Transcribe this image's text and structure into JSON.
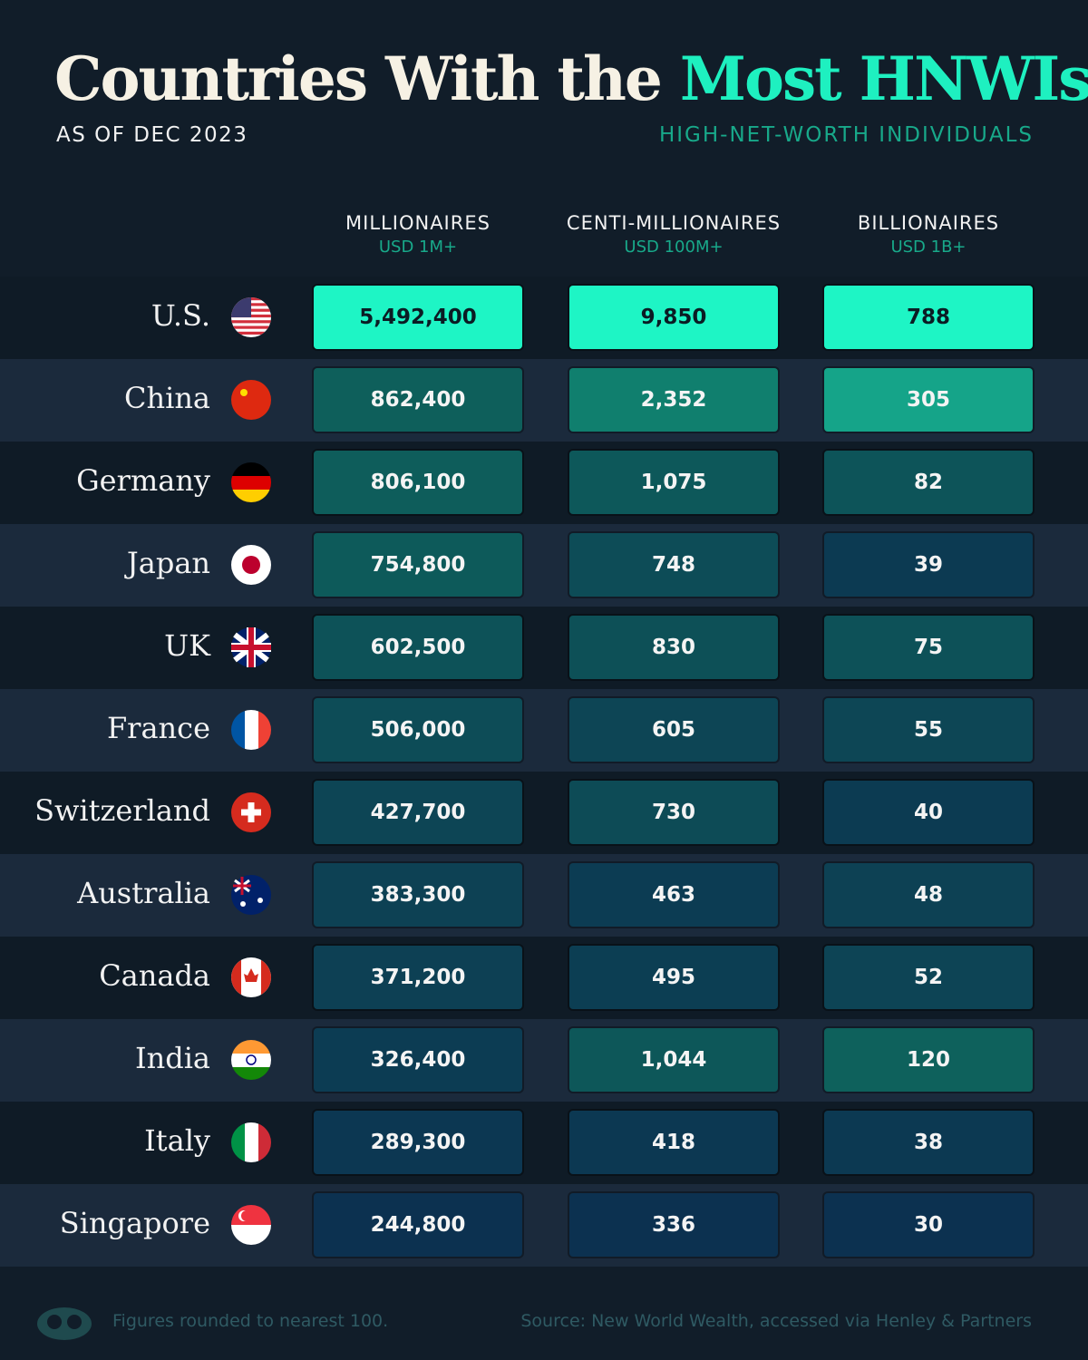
{
  "header": {
    "title_start": "Countries With the",
    "title_highlight": "Most HNWIs",
    "subtitle": "AS OF DEC 2023",
    "tagline": "HIGH-NET-WORTH INDIVIDUALS"
  },
  "table": {
    "columns": [
      {
        "name": "MILLIONAIRES",
        "sub": "USD 1M+"
      },
      {
        "name": "CENTI-MILLIONAIRES",
        "sub": "USD 100M+"
      },
      {
        "name": "BILLIONAIRES",
        "sub": "USD 1B+"
      }
    ],
    "rows": [
      {
        "country": "U.S.",
        "values": [
          "5,492,400",
          "9,850",
          "788"
        ]
      },
      {
        "country": "China",
        "values": [
          "862,400",
          "2,352",
          "305"
        ]
      },
      {
        "country": "Germany",
        "values": [
          "806,100",
          "1,075",
          "82"
        ]
      },
      {
        "country": "Japan",
        "values": [
          "754,800",
          "748",
          "39"
        ]
      },
      {
        "country": "UK",
        "values": [
          "602,500",
          "830",
          "75"
        ]
      },
      {
        "country": "France",
        "values": [
          "506,000",
          "605",
          "55"
        ]
      },
      {
        "country": "Switzerland",
        "values": [
          "427,700",
          "730",
          "40"
        ]
      },
      {
        "country": "Australia",
        "values": [
          "383,300",
          "463",
          "48"
        ]
      },
      {
        "country": "Canada",
        "values": [
          "371,200",
          "495",
          "52"
        ]
      },
      {
        "country": "India",
        "values": [
          "326,400",
          "1,044",
          "120"
        ]
      },
      {
        "country": "Italy",
        "values": [
          "289,300",
          "418",
          "38"
        ]
      },
      {
        "country": "Singapore",
        "values": [
          "244,800",
          "336",
          "30"
        ]
      }
    ]
  },
  "footer": {
    "note": "Figures rounded to nearest 100.",
    "source": "Source: New World Wealth, accessed via Henley & Partners"
  }
}
